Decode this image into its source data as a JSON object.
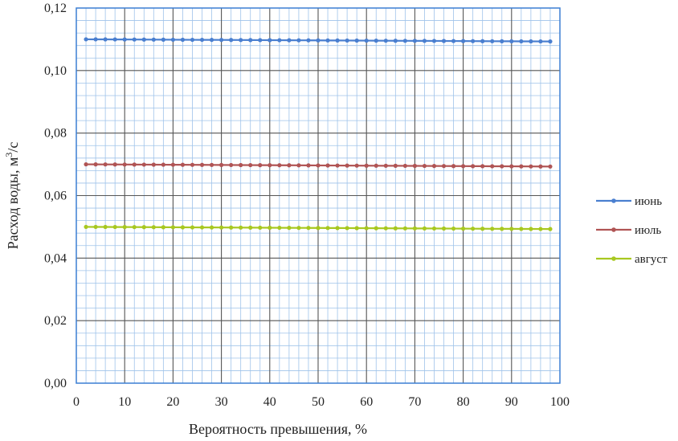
{
  "chart_data": {
    "type": "line",
    "title": "",
    "xlabel": "Вероятность превышения, %",
    "ylabel_text": "Расход воды, м",
    "ylabel_sup": "3",
    "ylabel_unit": "/с",
    "xlim": [
      0,
      100
    ],
    "ylim": [
      0.0,
      0.12
    ],
    "x_ticks": [
      0,
      10,
      20,
      30,
      40,
      50,
      60,
      70,
      80,
      90,
      100
    ],
    "x_tick_labels": [
      "0",
      "10",
      "20",
      "30",
      "40",
      "50",
      "60",
      "70",
      "80",
      "90",
      "100"
    ],
    "y_ticks": [
      0.0,
      0.02,
      0.04,
      0.06,
      0.08,
      0.1,
      0.12
    ],
    "y_tick_labels": [
      "0,00",
      "0,02",
      "0,04",
      "0,06",
      "0,08",
      "0,10",
      "0,12"
    ],
    "grid": true,
    "legend_position": "right",
    "series": [
      {
        "name": "июнь",
        "color": "#4a7fd0",
        "x_start": 2,
        "x_end": 98,
        "x_step": 2,
        "y_start": 0.11,
        "y_end": 0.1093
      },
      {
        "name": "июль",
        "color": "#b05454",
        "x_start": 2,
        "x_end": 98,
        "x_step": 2,
        "y_start": 0.07,
        "y_end": 0.0693
      },
      {
        "name": "август",
        "color": "#a8c820",
        "x_start": 2,
        "x_end": 98,
        "x_step": 2,
        "y_start": 0.05,
        "y_end": 0.0493
      }
    ]
  }
}
